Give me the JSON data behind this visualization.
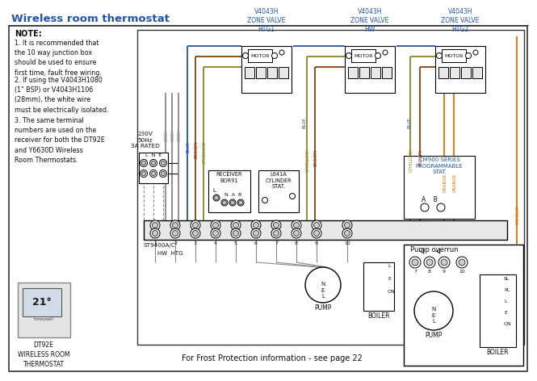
{
  "title": "Wireless room thermostat",
  "bg_color": "#ffffff",
  "note_text": "NOTE:",
  "note1": "1. It is recommended that\nthe 10 way junction box\nshould be used to ensure\nfirst time, fault free wiring.",
  "note2": "2. If using the V4043H1080\n(1\" BSP) or V4043H1106\n(28mm), the white wire\nmust be electrically isolated.",
  "note3": "3. The same terminal\nnumbers are used on the\nreceiver for both the DT92E\nand Y6630D Wireless\nRoom Thermostats.",
  "frost_text": "For Frost Protection information - see page 22",
  "dt92e_label": "DT92E\nWIRELESS ROOM\nTHERMOSTAT",
  "pump_overrun": "Pump overrun",
  "valve1_label": "V4043H\nZONE VALVE\nHTG1",
  "valve2_label": "V4043H\nZONE VALVE\nHW",
  "valve3_label": "V4043H\nZONE VALVE\nHTG2",
  "cm900_label": "CM900 SERIES\nPROGRAMMABLE\nSTAT.",
  "l641a_label": "L641A\nCYLINDER\nSTAT.",
  "receiver_label": "RECEIVER\nBOR91",
  "st9400_label": "ST9400A/C",
  "mains_label": "230V\n50Hz\n3A RATED",
  "hwhtg_label": "HW HTG",
  "boiler_label": "BOILER",
  "pump_label": "PUMP",
  "grey": "#888888",
  "blue_c": "#2255aa",
  "brown_c": "#8B4010",
  "orange_c": "#E07000",
  "gyellow_c": "#888820",
  "black": "#000000",
  "tc_orange": "#E07000",
  "tc_blue": "#2255aa",
  "tc_black": "#111111"
}
